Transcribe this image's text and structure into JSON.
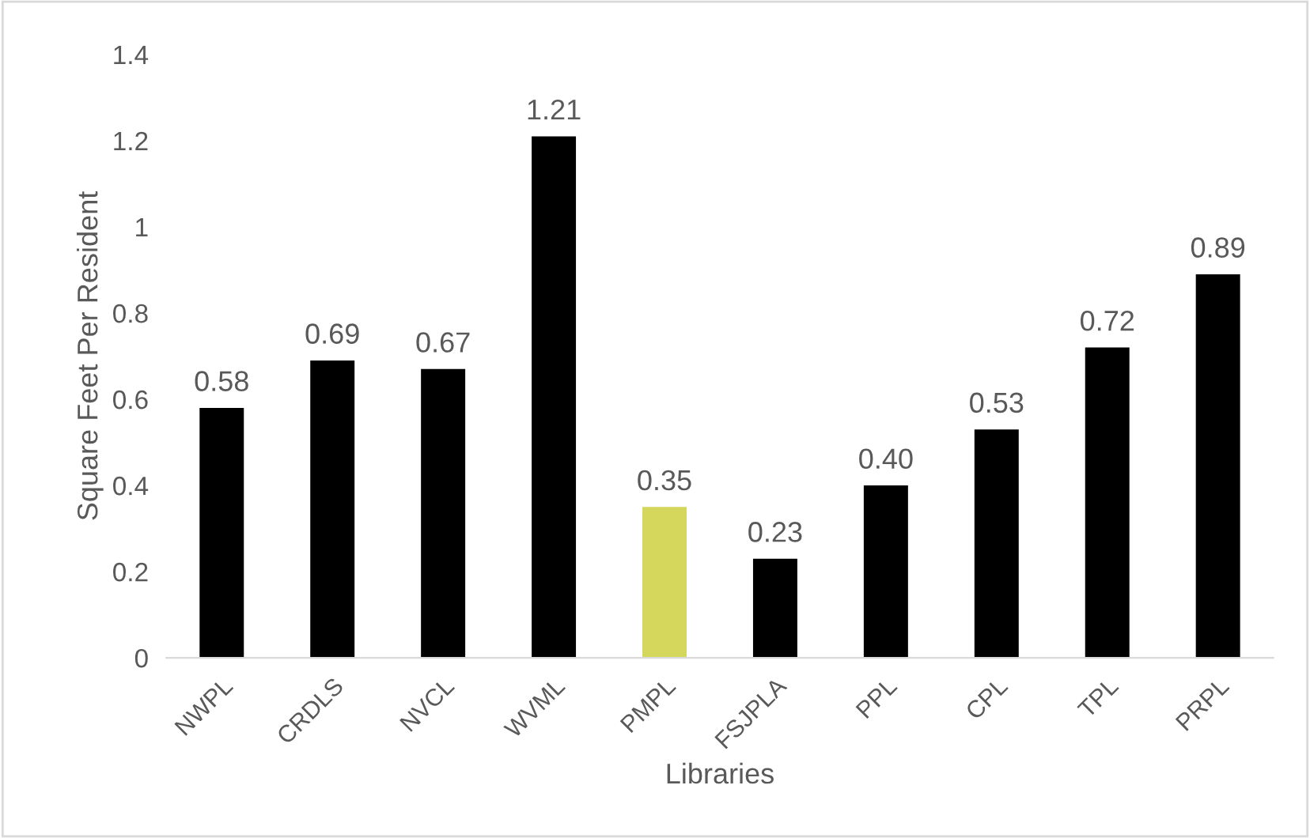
{
  "chart_data": {
    "type": "bar",
    "xlabel": "Libraries",
    "ylabel": "Square Feet Per Resident",
    "categories": [
      "NWPL",
      "CRDLS",
      "NVCL",
      "WVML",
      "PMPL",
      "FSJPLA",
      "PPL",
      "CPL",
      "TPL",
      "PRPL"
    ],
    "values": [
      0.58,
      0.69,
      0.67,
      1.21,
      0.35,
      0.23,
      0.4,
      0.53,
      0.72,
      0.89
    ],
    "colors": [
      "#000000",
      "#000000",
      "#000000",
      "#000000",
      "#d5d65c",
      "#000000",
      "#000000",
      "#000000",
      "#000000",
      "#000000"
    ],
    "value_labels": [
      "0.58",
      "0.69",
      "0.67",
      "1.21",
      "0.35",
      "0.23",
      "0.40",
      "0.53",
      "0.72",
      "0.89"
    ],
    "ylim": [
      0,
      1.4
    ],
    "yticks": [
      0,
      0.2,
      0.4,
      0.6,
      0.8,
      1,
      1.2,
      1.4
    ],
    "grid": false,
    "legend": false
  }
}
